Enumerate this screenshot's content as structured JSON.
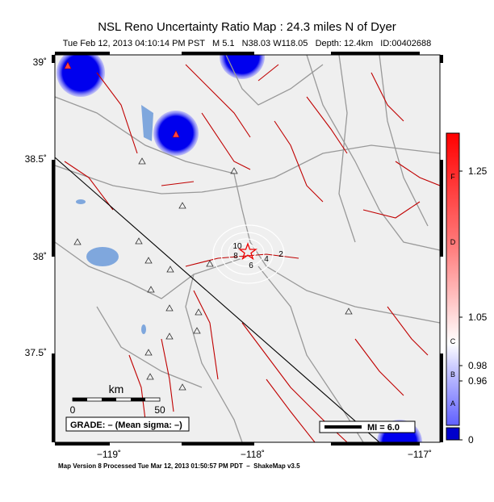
{
  "header": {
    "title": "NSL Reno Uncertainty Ratio Map : 24.3 miles N of Dyer",
    "subtitle": "Tue Feb 12, 2013 04:10:14 PM PST   M 5.1   N38.03 W118.05   Depth: 12.4km   ID:00402688"
  },
  "map": {
    "lat_labels": [
      "39˚",
      "38.5˚",
      "38˚",
      "37.5˚"
    ],
    "lon_labels": [
      "−119˚",
      "−118˚",
      "−117˚"
    ],
    "contour_labels": [
      "10",
      "8",
      "6",
      "4",
      "2"
    ]
  },
  "scale_bar": {
    "unit": "km",
    "start": "0",
    "end": "50"
  },
  "grade": "GRADE: – (Mean sigma: –)",
  "legend": "MI = 6.0",
  "colorbar": {
    "ticks": [
      "1.25",
      "1.05",
      "0.98",
      "0.96",
      "0"
    ],
    "grades": [
      "F",
      "D",
      "C",
      "B",
      "A"
    ]
  },
  "footer": "Map Version 8 Processed Tue Mar 12, 2013 01:50:57 PM PDT  –  ShakeMap v3.5"
}
